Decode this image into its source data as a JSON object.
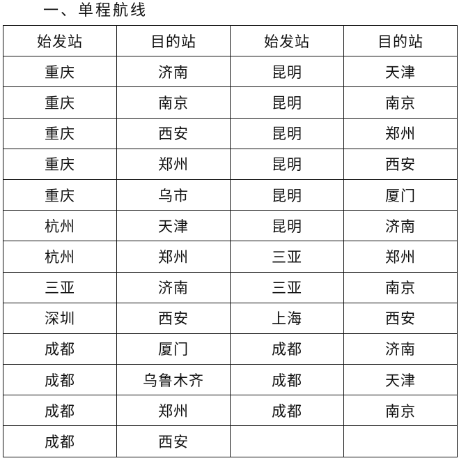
{
  "title": "一、单程航线",
  "headers": [
    "始发站",
    "目的站",
    "始发站",
    "目的站"
  ],
  "rows": [
    [
      "重庆",
      "济南",
      "昆明",
      "天津"
    ],
    [
      "重庆",
      "南京",
      "昆明",
      "南京"
    ],
    [
      "重庆",
      "西安",
      "昆明",
      "郑州"
    ],
    [
      "重庆",
      "郑州",
      "昆明",
      "西安"
    ],
    [
      "重庆",
      "乌市",
      "昆明",
      "厦门"
    ],
    [
      "杭州",
      "天津",
      "昆明",
      "济南"
    ],
    [
      "杭州",
      "郑州",
      "三亚",
      "郑州"
    ],
    [
      "三亚",
      "济南",
      "三亚",
      "南京"
    ],
    [
      "深圳",
      "西安",
      "上海",
      "西安"
    ],
    [
      "成都",
      "厦门",
      "成都",
      "济南"
    ],
    [
      "成都",
      "乌鲁木齐",
      "成都",
      "天津"
    ],
    [
      "成都",
      "郑州",
      "成都",
      "南京"
    ],
    [
      "成都",
      "西安",
      "",
      ""
    ]
  ]
}
